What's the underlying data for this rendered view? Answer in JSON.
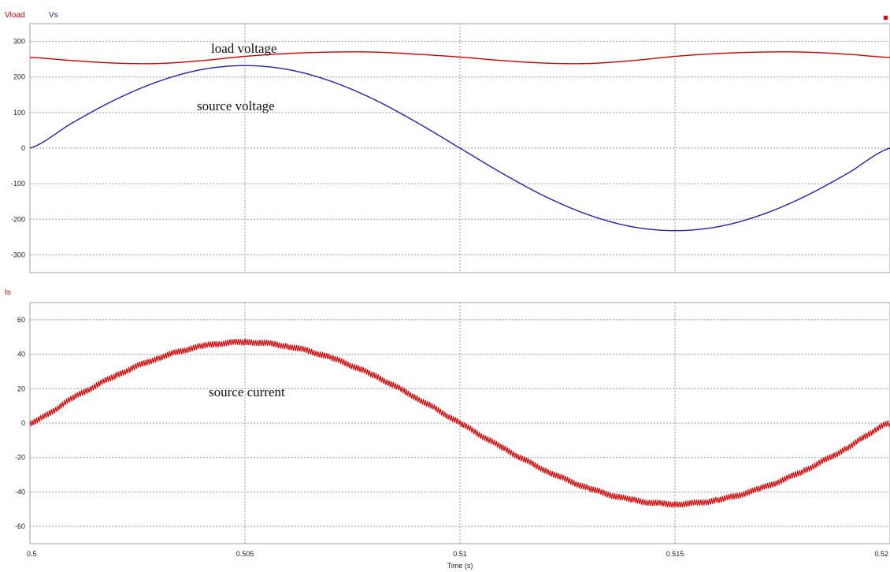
{
  "chart_data": [
    {
      "type": "line",
      "legend": [
        "Vload",
        "Vs"
      ],
      "series": [
        {
          "name": "Vload",
          "color": "#cc0000",
          "x": [
            0.5,
            0.501,
            0.502,
            0.503,
            0.504,
            0.505,
            0.506,
            0.507,
            0.508,
            0.509,
            0.51,
            0.511,
            0.512,
            0.513,
            0.514,
            0.515,
            0.516,
            0.517,
            0.518,
            0.519,
            0.52
          ],
          "y": [
            255,
            246,
            239,
            238,
            246,
            258,
            266,
            270,
            270,
            264,
            256,
            246,
            239,
            238,
            246,
            258,
            266,
            270,
            270,
            264,
            255
          ]
        },
        {
          "name": "Vs",
          "color": "#2222aa",
          "x": [
            0.5,
            0.501,
            0.502,
            0.503,
            0.504,
            0.505,
            0.506,
            0.507,
            0.508,
            0.509,
            0.51,
            0.511,
            0.512,
            0.513,
            0.514,
            0.515,
            0.516,
            0.517,
            0.518,
            0.519,
            0.52
          ],
          "y": [
            0,
            72,
            137,
            188,
            221,
            232,
            221,
            188,
            137,
            72,
            0,
            -72,
            -137,
            -188,
            -221,
            -232,
            -221,
            -188,
            -137,
            -72,
            0
          ]
        }
      ],
      "xlim": [
        0.5,
        0.52
      ],
      "ylim": [
        -350,
        350
      ],
      "yticks": [
        300,
        200,
        100,
        0,
        -100,
        -200,
        -300
      ],
      "xticks": [
        0.5,
        0.505,
        0.51,
        0.515,
        0.52
      ],
      "grid": true,
      "annotations": [
        "load voltage",
        "source voltage"
      ]
    },
    {
      "type": "line",
      "legend": [
        "Is"
      ],
      "series": [
        {
          "name": "Is",
          "color": "#dd0000",
          "x": [
            0.5,
            0.501,
            0.502,
            0.503,
            0.504,
            0.505,
            0.506,
            0.507,
            0.508,
            0.509,
            0.51,
            0.511,
            0.512,
            0.513,
            0.514,
            0.515,
            0.516,
            0.517,
            0.518,
            0.519,
            0.52
          ],
          "y": [
            0,
            14.5,
            27.6,
            37.9,
            44.6,
            47,
            44.6,
            37.9,
            27.6,
            14.5,
            0,
            -14.5,
            -27.6,
            -37.9,
            -44.6,
            -47,
            -44.6,
            -37.9,
            -27.6,
            -14.5,
            0
          ]
        }
      ],
      "xlim": [
        0.5,
        0.52
      ],
      "ylim": [
        -70,
        70
      ],
      "yticks": [
        60,
        40,
        20,
        0,
        -20,
        -40,
        -60
      ],
      "xticks": [
        0.5,
        0.505,
        0.51,
        0.515,
        0.52
      ],
      "xticklabels": [
        "0.5",
        "0.505",
        "0.51",
        "0.515",
        "0.52"
      ],
      "xlabel": "Time (s)",
      "grid": true,
      "annotations": [
        "source current"
      ]
    }
  ]
}
